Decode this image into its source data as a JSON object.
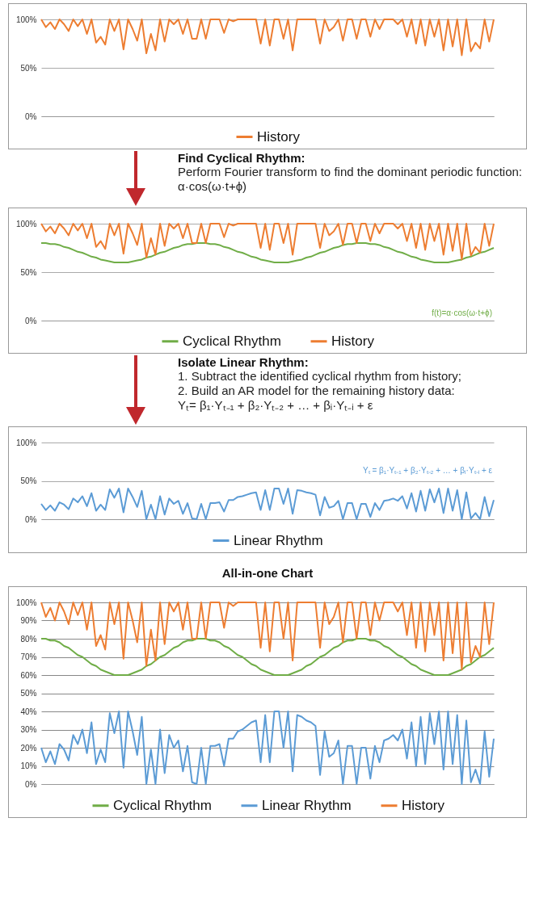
{
  "chart_data": [
    {
      "type": "line",
      "categories": [
        null,
        null,
        null,
        null,
        null,
        null,
        null,
        null,
        null,
        null,
        null,
        null,
        null,
        null,
        null,
        null,
        null,
        null,
        null,
        null,
        null,
        null,
        null,
        null,
        null,
        null,
        null,
        null,
        null,
        null,
        null,
        null,
        null,
        null,
        null,
        null,
        null,
        null,
        null,
        null,
        null,
        null,
        null,
        null,
        null,
        null,
        null,
        null,
        null,
        null,
        null,
        null,
        null,
        null,
        null,
        null,
        null,
        null,
        null,
        null,
        null,
        null,
        null,
        null,
        null,
        null,
        null,
        null,
        null,
        null,
        null,
        null,
        null,
        null,
        null,
        null,
        null,
        null,
        null,
        null,
        null,
        null,
        null,
        null,
        null,
        null,
        null,
        null,
        null,
        null,
        null,
        null,
        null,
        null,
        null,
        null,
        null,
        null,
        null,
        null
      ],
      "series": [
        {
          "name": "History",
          "color": "#ed7d31",
          "values": [
            100,
            92,
            97,
            90,
            100,
            95,
            88,
            100,
            93,
            100,
            85,
            100,
            76,
            82,
            74,
            100,
            88,
            100,
            69,
            100,
            90,
            78,
            100,
            65,
            85,
            68,
            100,
            77,
            100,
            95,
            100,
            85,
            100,
            80,
            80,
            100,
            80,
            100,
            100,
            100,
            86,
            100,
            98,
            100,
            100,
            100,
            100,
            100,
            75,
            100,
            73,
            100,
            100,
            80,
            100,
            68,
            100,
            100,
            100,
            100,
            100,
            75,
            100,
            88,
            92,
            100,
            78,
            100,
            100,
            80,
            100,
            100,
            82,
            100,
            90,
            100,
            100,
            100,
            95,
            100,
            82,
            100,
            75,
            100,
            73,
            100,
            82,
            100,
            68,
            100,
            72,
            100,
            63,
            100,
            67,
            76,
            70,
            100,
            77,
            100
          ]
        }
      ],
      "ylim": [
        0,
        100
      ],
      "yticks": [
        {
          "value": 0,
          "label": "0%"
        },
        {
          "value": 50,
          "label": "50%"
        },
        {
          "value": 100,
          "label": "100%"
        }
      ],
      "grid": "y",
      "legend": "bottom",
      "tick_labels": "y"
    },
    {
      "type": "line",
      "title": "Find Cyclical Rhythm:",
      "subtitle": "Perform Fourier transform to find the dominant periodic function: α·cos(ω·t+ϕ)",
      "annotations": [
        "f(t)=α·cos(ω·t+ϕ)"
      ],
      "categories": [
        null,
        null,
        null,
        null,
        null,
        null,
        null,
        null,
        null,
        null,
        null,
        null,
        null,
        null,
        null,
        null,
        null,
        null,
        null,
        null,
        null,
        null,
        null,
        null,
        null,
        null,
        null,
        null,
        null,
        null,
        null,
        null,
        null,
        null,
        null,
        null,
        null,
        null,
        null,
        null,
        null,
        null,
        null,
        null,
        null,
        null,
        null,
        null,
        null,
        null,
        null,
        null,
        null,
        null,
        null,
        null,
        null,
        null,
        null,
        null,
        null,
        null,
        null,
        null,
        null,
        null,
        null,
        null,
        null,
        null,
        null,
        null,
        null,
        null,
        null,
        null,
        null,
        null,
        null,
        null,
        null,
        null,
        null,
        null,
        null,
        null,
        null,
        null,
        null,
        null,
        null,
        null,
        null,
        null,
        null,
        null,
        null,
        null,
        null,
        null
      ],
      "series": [
        {
          "name": "Cyclical Rhythm",
          "color": "#70ad47",
          "values": [
            80,
            80,
            79,
            79,
            78,
            76,
            75,
            73,
            71,
            70,
            68,
            66,
            65,
            63,
            62,
            61,
            60,
            60,
            60,
            60,
            61,
            62,
            63,
            65,
            66,
            68,
            70,
            71,
            73,
            75,
            76,
            78,
            79,
            79,
            80,
            80,
            80,
            79,
            79,
            78,
            76,
            75,
            73,
            71,
            70,
            68,
            66,
            65,
            63,
            62,
            61,
            60,
            60,
            60,
            60,
            61,
            62,
            63,
            65,
            66,
            68,
            70,
            71,
            73,
            75,
            76,
            78,
            79,
            79,
            80,
            80,
            80,
            79,
            79,
            78,
            76,
            75,
            73,
            71,
            70,
            68,
            66,
            65,
            63,
            62,
            61,
            60,
            60,
            60,
            60,
            61,
            62,
            63,
            65,
            66,
            68,
            70,
            71,
            73,
            75
          ]
        },
        {
          "name": "History",
          "color": "#ed7d31",
          "values": [
            100,
            92,
            97,
            90,
            100,
            95,
            88,
            100,
            93,
            100,
            85,
            100,
            76,
            82,
            74,
            100,
            88,
            100,
            69,
            100,
            90,
            78,
            100,
            65,
            85,
            68,
            100,
            77,
            100,
            95,
            100,
            85,
            100,
            80,
            80,
            100,
            80,
            100,
            100,
            100,
            86,
            100,
            98,
            100,
            100,
            100,
            100,
            100,
            75,
            100,
            73,
            100,
            100,
            80,
            100,
            68,
            100,
            100,
            100,
            100,
            100,
            75,
            100,
            88,
            92,
            100,
            78,
            100,
            100,
            80,
            100,
            100,
            82,
            100,
            90,
            100,
            100,
            100,
            95,
            100,
            82,
            100,
            75,
            100,
            73,
            100,
            82,
            100,
            68,
            100,
            72,
            100,
            63,
            100,
            67,
            76,
            70,
            100,
            77,
            100
          ]
        }
      ],
      "ylim": [
        0,
        100
      ],
      "yticks": [
        {
          "value": 0,
          "label": "0%"
        },
        {
          "value": 50,
          "label": "50%"
        },
        {
          "value": 100,
          "label": "100%"
        }
      ],
      "grid": "y",
      "legend": "bottom",
      "tick_labels": "y"
    },
    {
      "type": "line",
      "title": "Isolate Linear Rhythm:",
      "subtitle": "1. Subtract the identified cyclical rhythm from history;\n2. Build an AR model for the remaining history data:\nYₜ= β₁·Yₜ₋₁ + β₂·Yₜ₋₂ + … + βᵢ·Yₜ₋ᵢ + ε",
      "annotations": [
        "Yₜ = β₁·Yₜ₋₁ + β₂·Yₜ₋₂ + … + βᵢ·Yₜ₋ᵢ + ε"
      ],
      "categories": [
        null,
        null,
        null,
        null,
        null,
        null,
        null,
        null,
        null,
        null,
        null,
        null,
        null,
        null,
        null,
        null,
        null,
        null,
        null,
        null,
        null,
        null,
        null,
        null,
        null,
        null,
        null,
        null,
        null,
        null,
        null,
        null,
        null,
        null,
        null,
        null,
        null,
        null,
        null,
        null,
        null,
        null,
        null,
        null,
        null,
        null,
        null,
        null,
        null,
        null,
        null,
        null,
        null,
        null,
        null,
        null,
        null,
        null,
        null,
        null,
        null,
        null,
        null,
        null,
        null,
        null,
        null,
        null,
        null,
        null,
        null,
        null,
        null,
        null,
        null,
        null,
        null,
        null,
        null,
        null,
        null,
        null,
        null,
        null,
        null,
        null,
        null,
        null,
        null,
        null,
        null,
        null,
        null,
        null,
        null,
        null,
        null,
        null,
        null,
        null
      ],
      "series": [
        {
          "name": "Linear Rhythm",
          "color": "#5b9bd5",
          "values": [
            20,
            12,
            18,
            11,
            22,
            19,
            13,
            27,
            22,
            30,
            17,
            34,
            11,
            19,
            12,
            39,
            28,
            40,
            9,
            40,
            29,
            16,
            37,
            0,
            19,
            0,
            30,
            6,
            27,
            20,
            24,
            7,
            21,
            1,
            0,
            20,
            0,
            21,
            21,
            22,
            10,
            25,
            25,
            29,
            30,
            32,
            34,
            35,
            12,
            38,
            12,
            40,
            40,
            20,
            40,
            7,
            38,
            37,
            35,
            34,
            32,
            5,
            29,
            15,
            17,
            24,
            0,
            21,
            21,
            0,
            20,
            20,
            3,
            21,
            12,
            24,
            25,
            27,
            24,
            30,
            14,
            34,
            10,
            37,
            11,
            39,
            22,
            40,
            8,
            40,
            11,
            38,
            0,
            35,
            1,
            8,
            0,
            29,
            4,
            25
          ]
        }
      ],
      "ylim": [
        0,
        100
      ],
      "yticks": [
        {
          "value": 0,
          "label": "0%"
        },
        {
          "value": 50,
          "label": "50%"
        },
        {
          "value": 100,
          "label": "100%"
        }
      ],
      "grid": "y",
      "legend": "bottom",
      "tick_labels": "y"
    },
    {
      "type": "line",
      "title": "All-in-one Chart",
      "categories": [
        null,
        null,
        null,
        null,
        null,
        null,
        null,
        null,
        null,
        null,
        null,
        null,
        null,
        null,
        null,
        null,
        null,
        null,
        null,
        null,
        null,
        null,
        null,
        null,
        null,
        null,
        null,
        null,
        null,
        null,
        null,
        null,
        null,
        null,
        null,
        null,
        null,
        null,
        null,
        null,
        null,
        null,
        null,
        null,
        null,
        null,
        null,
        null,
        null,
        null,
        null,
        null,
        null,
        null,
        null,
        null,
        null,
        null,
        null,
        null,
        null,
        null,
        null,
        null,
        null,
        null,
        null,
        null,
        null,
        null,
        null,
        null,
        null,
        null,
        null,
        null,
        null,
        null,
        null,
        null,
        null,
        null,
        null,
        null,
        null,
        null,
        null,
        null,
        null,
        null,
        null,
        null,
        null,
        null,
        null,
        null,
        null,
        null,
        null,
        null
      ],
      "series": [
        {
          "name": "Cyclical Rhythm",
          "color": "#70ad47",
          "values": [
            80,
            80,
            79,
            79,
            78,
            76,
            75,
            73,
            71,
            70,
            68,
            66,
            65,
            63,
            62,
            61,
            60,
            60,
            60,
            60,
            61,
            62,
            63,
            65,
            66,
            68,
            70,
            71,
            73,
            75,
            76,
            78,
            79,
            79,
            80,
            80,
            80,
            79,
            79,
            78,
            76,
            75,
            73,
            71,
            70,
            68,
            66,
            65,
            63,
            62,
            61,
            60,
            60,
            60,
            60,
            61,
            62,
            63,
            65,
            66,
            68,
            70,
            71,
            73,
            75,
            76,
            78,
            79,
            79,
            80,
            80,
            80,
            79,
            79,
            78,
            76,
            75,
            73,
            71,
            70,
            68,
            66,
            65,
            63,
            62,
            61,
            60,
            60,
            60,
            60,
            61,
            62,
            63,
            65,
            66,
            68,
            70,
            71,
            73,
            75
          ]
        },
        {
          "name": "Linear Rhythm",
          "color": "#5b9bd5",
          "values": [
            20,
            12,
            18,
            11,
            22,
            19,
            13,
            27,
            22,
            30,
            17,
            34,
            11,
            19,
            12,
            39,
            28,
            40,
            9,
            40,
            29,
            16,
            37,
            0,
            19,
            0,
            30,
            6,
            27,
            20,
            24,
            7,
            21,
            1,
            0,
            20,
            0,
            21,
            21,
            22,
            10,
            25,
            25,
            29,
            30,
            32,
            34,
            35,
            12,
            38,
            12,
            40,
            40,
            20,
            40,
            7,
            38,
            37,
            35,
            34,
            32,
            5,
            29,
            15,
            17,
            24,
            0,
            21,
            21,
            0,
            20,
            20,
            3,
            21,
            12,
            24,
            25,
            27,
            24,
            30,
            14,
            34,
            10,
            37,
            11,
            39,
            22,
            40,
            8,
            40,
            11,
            38,
            0,
            35,
            1,
            8,
            0,
            29,
            4,
            25
          ]
        },
        {
          "name": "History",
          "color": "#ed7d31",
          "values": [
            100,
            92,
            97,
            90,
            100,
            95,
            88,
            100,
            93,
            100,
            85,
            100,
            76,
            82,
            74,
            100,
            88,
            100,
            69,
            100,
            90,
            78,
            100,
            65,
            85,
            68,
            100,
            77,
            100,
            95,
            100,
            85,
            100,
            80,
            80,
            100,
            80,
            100,
            100,
            100,
            86,
            100,
            98,
            100,
            100,
            100,
            100,
            100,
            75,
            100,
            73,
            100,
            100,
            80,
            100,
            68,
            100,
            100,
            100,
            100,
            100,
            75,
            100,
            88,
            92,
            100,
            78,
            100,
            100,
            80,
            100,
            100,
            82,
            100,
            90,
            100,
            100,
            100,
            95,
            100,
            82,
            100,
            75,
            100,
            73,
            100,
            82,
            100,
            68,
            100,
            72,
            100,
            63,
            100,
            67,
            76,
            70,
            100,
            77,
            100
          ]
        }
      ],
      "ylim": [
        0,
        100
      ],
      "yticks": [
        {
          "value": 0,
          "label": "0%"
        },
        {
          "value": 10,
          "label": "10%"
        },
        {
          "value": 20,
          "label": "20%"
        },
        {
          "value": 30,
          "label": "30%"
        },
        {
          "value": 40,
          "label": "40%"
        },
        {
          "value": 50,
          "label": "50%"
        },
        {
          "value": 60,
          "label": "60%"
        },
        {
          "value": 70,
          "label": "70%"
        },
        {
          "value": 80,
          "label": "80%"
        },
        {
          "value": 90,
          "label": "90%"
        },
        {
          "value": 100,
          "label": "100%"
        }
      ],
      "grid": "y",
      "legend": "bottom",
      "tick_labels": "y"
    }
  ]
}
